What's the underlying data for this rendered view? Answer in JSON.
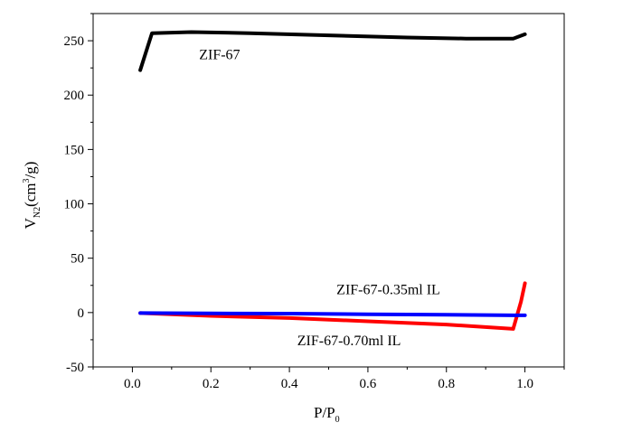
{
  "chart_data": {
    "type": "line",
    "xlabel": {
      "main": "P/P",
      "sub": "0"
    },
    "ylabel": {
      "main": "V",
      "sub": "N2",
      "unit_pre": "(cm",
      "sup": "3",
      "unit_post": "/g)"
    },
    "xlim": [
      -0.1,
      1.1
    ],
    "ylim": [
      -50,
      275
    ],
    "xticks": [
      0.0,
      0.2,
      0.4,
      0.6,
      0.8,
      1.0
    ],
    "xtick_labels": [
      "0.0",
      "0.2",
      "0.4",
      "0.6",
      "0.8",
      "1.0"
    ],
    "yticks": [
      -50,
      0,
      50,
      100,
      150,
      200,
      250
    ],
    "ytick_labels": [
      "-50",
      "0",
      "50",
      "100",
      "150",
      "200",
      "250"
    ],
    "grid": false,
    "series": [
      {
        "name": "ZIF-67",
        "color": "#000000",
        "x": [
          0.02,
          0.05,
          0.15,
          0.3,
          0.5,
          0.7,
          0.85,
          0.97,
          1.0
        ],
        "y": [
          223,
          257,
          258,
          257,
          255,
          253,
          252,
          252,
          256
        ]
      },
      {
        "name": "ZIF-67-0.35ml IL",
        "color": "#0000ff",
        "x": [
          0.02,
          0.2,
          0.4,
          0.6,
          0.8,
          0.97,
          1.0
        ],
        "y": [
          -0.5,
          -0.8,
          -1.0,
          -1.5,
          -2.0,
          -2.5,
          -2.5
        ]
      },
      {
        "name": "ZIF-67-0.70ml IL",
        "color": "#ff0000",
        "x": [
          0.02,
          0.2,
          0.4,
          0.6,
          0.8,
          0.97,
          0.99,
          1.0
        ],
        "y": [
          -0.5,
          -3,
          -5,
          -8,
          -11,
          -15,
          10,
          27
        ]
      }
    ],
    "annotations": [
      {
        "text": "ZIF-67",
        "series": 0
      },
      {
        "text": "ZIF-67-0.35ml IL",
        "series": 1
      },
      {
        "text": "ZIF-67-0.70ml IL",
        "series": 2
      }
    ]
  }
}
